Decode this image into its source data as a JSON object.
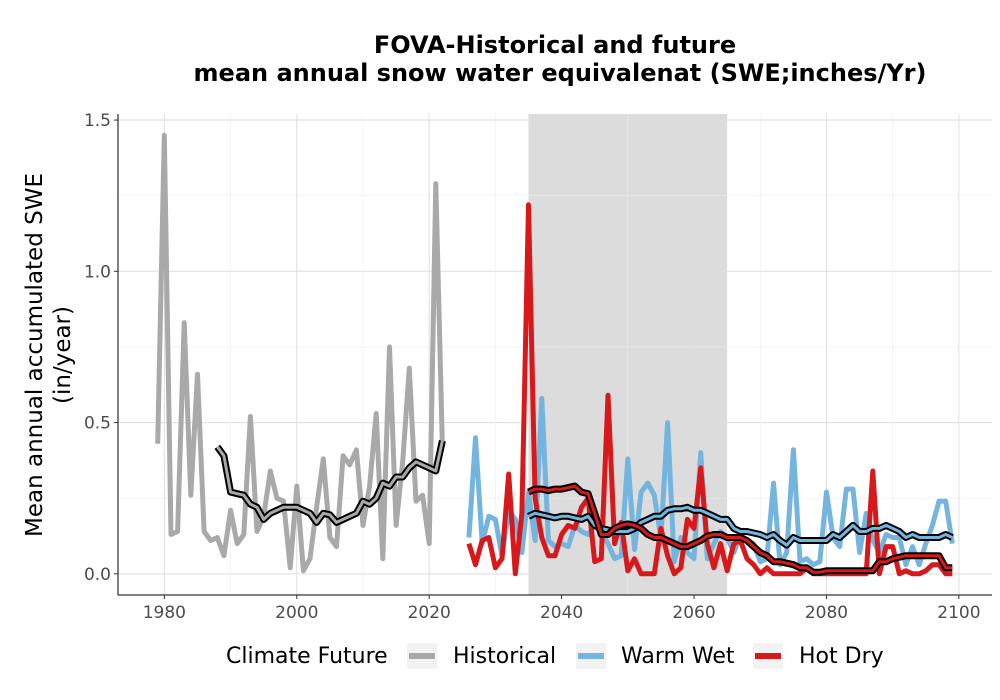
{
  "chart_data": {
    "type": "line",
    "title_line1": "FOVA-Historical and future",
    "title_line2": "mean annual snow water equivalenat (SWE;inches/Yr)",
    "ylabel_line1": "Mean annual accumulated SWE",
    "ylabel_line2": "(in/year)",
    "xlabel": "",
    "xlim": [
      1973,
      2105
    ],
    "ylim": [
      -0.07,
      1.52
    ],
    "xticks": [
      1980,
      2000,
      2020,
      2040,
      2060,
      2080,
      2100
    ],
    "yticks": [
      0.0,
      0.5,
      1.0,
      1.5
    ],
    "ytick_labels": [
      "0.0",
      "0.5",
      "1.0",
      "1.5"
    ],
    "shaded_period": [
      2035,
      2065
    ],
    "legend": {
      "title": "Climate Future",
      "position": "bottom",
      "entries": [
        {
          "label": "Historical",
          "color": "#a9a9a9"
        },
        {
          "label": "Warm Wet",
          "color": "#74b5e0"
        },
        {
          "label": "Hot Dry",
          "color": "#d7191c"
        }
      ]
    },
    "series": [
      {
        "name": "Historical",
        "color": "#a9a9a9",
        "x": [
          1979,
          1980,
          1981,
          1982,
          1983,
          1984,
          1985,
          1986,
          1987,
          1988,
          1989,
          1990,
          1991,
          1992,
          1993,
          1994,
          1995,
          1996,
          1997,
          1998,
          1999,
          2000,
          2001,
          2002,
          2003,
          2004,
          2005,
          2006,
          2007,
          2008,
          2009,
          2010,
          2011,
          2012,
          2013,
          2014,
          2015,
          2016,
          2017,
          2018,
          2019,
          2020,
          2021,
          2022
        ],
        "values": [
          0.43,
          1.45,
          0.13,
          0.14,
          0.83,
          0.26,
          0.66,
          0.14,
          0.11,
          0.12,
          0.06,
          0.21,
          0.1,
          0.13,
          0.52,
          0.14,
          0.19,
          0.34,
          0.25,
          0.24,
          0.02,
          0.29,
          0.01,
          0.05,
          0.22,
          0.38,
          0.12,
          0.09,
          0.39,
          0.36,
          0.41,
          0.16,
          0.29,
          0.53,
          0.05,
          0.75,
          0.16,
          0.37,
          0.68,
          0.24,
          0.26,
          0.1,
          1.29,
          0.42
        ]
      },
      {
        "name": "Warm Wet",
        "color": "#74b5e0",
        "x": [
          2026,
          2027,
          2028,
          2029,
          2030,
          2031,
          2032,
          2033,
          2034,
          2035,
          2036,
          2037,
          2038,
          2039,
          2040,
          2041,
          2042,
          2043,
          2044,
          2045,
          2046,
          2047,
          2048,
          2049,
          2050,
          2051,
          2052,
          2053,
          2054,
          2055,
          2056,
          2057,
          2058,
          2059,
          2060,
          2061,
          2062,
          2063,
          2064,
          2065,
          2066,
          2067,
          2068,
          2069,
          2070,
          2071,
          2072,
          2073,
          2074,
          2075,
          2076,
          2077,
          2078,
          2079,
          2080,
          2081,
          2082,
          2083,
          2084,
          2085,
          2086,
          2087,
          2088,
          2089,
          2090,
          2091,
          2092,
          2093,
          2094,
          2095,
          2096,
          2097,
          2098,
          2099
        ],
        "values": [
          0.12,
          0.45,
          0.1,
          0.19,
          0.18,
          0.06,
          0.21,
          0.18,
          0.07,
          0.27,
          0.11,
          0.58,
          0.11,
          0.09,
          0.1,
          0.09,
          0.16,
          0.14,
          0.13,
          0.16,
          0.14,
          0.1,
          0.05,
          0.06,
          0.38,
          0.08,
          0.27,
          0.3,
          0.26,
          0.12,
          0.5,
          0.04,
          0.12,
          0.07,
          0.05,
          0.4,
          0.05,
          0.1,
          0.14,
          0.12,
          0.07,
          0.13,
          0.11,
          0.1,
          0.04,
          0.05,
          0.3,
          0.03,
          0.07,
          0.41,
          0.04,
          0.05,
          0.03,
          0.04,
          0.27,
          0.12,
          0.09,
          0.28,
          0.28,
          0.07,
          0.2,
          0.11,
          0.07,
          0.13,
          0.12,
          0.12,
          0.03,
          0.09,
          0.03,
          0.1,
          0.16,
          0.24,
          0.24,
          0.1
        ]
      },
      {
        "name": "Hot Dry",
        "color": "#d7191c",
        "x": [
          2026,
          2027,
          2028,
          2029,
          2030,
          2031,
          2032,
          2033,
          2034,
          2035,
          2036,
          2037,
          2038,
          2039,
          2040,
          2041,
          2042,
          2043,
          2044,
          2045,
          2046,
          2047,
          2048,
          2049,
          2050,
          2051,
          2052,
          2053,
          2054,
          2055,
          2056,
          2057,
          2058,
          2059,
          2060,
          2061,
          2062,
          2063,
          2064,
          2065,
          2066,
          2067,
          2068,
          2069,
          2070,
          2071,
          2072,
          2073,
          2074,
          2075,
          2076,
          2077,
          2078,
          2079,
          2080,
          2081,
          2082,
          2083,
          2084,
          2085,
          2086,
          2087,
          2088,
          2089,
          2090,
          2091,
          2092,
          2093,
          2094,
          2095,
          2096,
          2097,
          2098,
          2099
        ],
        "values": [
          0.1,
          0.03,
          0.11,
          0.12,
          0.02,
          0.05,
          0.33,
          0.0,
          0.2,
          1.22,
          0.25,
          0.12,
          0.06,
          0.06,
          0.13,
          0.16,
          0.15,
          0.22,
          0.25,
          0.04,
          0.05,
          0.59,
          0.1,
          0.17,
          0.01,
          0.05,
          0.0,
          0.0,
          0.0,
          0.15,
          0.06,
          0.0,
          0.02,
          0.18,
          0.15,
          0.35,
          0.1,
          0.02,
          0.1,
          0.01,
          0.1,
          0.11,
          0.05,
          0.03,
          0.0,
          0.02,
          0.0,
          0.0,
          0.0,
          0.0,
          0.0,
          0.02,
          0.0,
          0.0,
          0.0,
          0.0,
          0.0,
          0.0,
          0.0,
          0.0,
          0.0,
          0.34,
          0.0,
          0.09,
          0.09,
          0.0,
          0.01,
          0.0,
          0.0,
          0.01,
          0.03,
          0.03,
          0.0,
          0.0
        ]
      }
    ],
    "smoothed_series": [
      {
        "x": [
          1988,
          1989,
          1990,
          1991,
          1992,
          1993,
          1994,
          1995,
          1996,
          1997,
          1998,
          1999,
          2000,
          2001,
          2002,
          2003,
          2004,
          2005,
          2006,
          2007,
          2008,
          2009,
          2010,
          2011,
          2012,
          2013,
          2014,
          2015,
          2016,
          2017,
          2018,
          2019,
          2020,
          2021,
          2022
        ],
        "values": [
          0.42,
          0.39,
          0.27,
          0.265,
          0.26,
          0.23,
          0.22,
          0.18,
          0.2,
          0.21,
          0.22,
          0.22,
          0.22,
          0.21,
          0.2,
          0.17,
          0.2,
          0.195,
          0.17,
          0.18,
          0.19,
          0.2,
          0.24,
          0.23,
          0.25,
          0.3,
          0.29,
          0.32,
          0.32,
          0.35,
          0.37,
          0.36,
          0.35,
          0.34,
          0.44
        ]
      },
      {
        "x": [
          2035,
          2036,
          2037,
          2038,
          2039,
          2040,
          2041,
          2042,
          2043,
          2044,
          2045,
          2046,
          2047,
          2048,
          2049,
          2050,
          2051,
          2052,
          2053,
          2054,
          2055,
          2056,
          2057,
          2058,
          2059,
          2060,
          2061,
          2062,
          2063,
          2064,
          2065,
          2066,
          2067,
          2068,
          2069,
          2070,
          2071,
          2072,
          2073,
          2074,
          2075,
          2076,
          2077,
          2078,
          2079,
          2080,
          2081,
          2082,
          2083,
          2084,
          2085,
          2086,
          2087,
          2088,
          2089,
          2090,
          2091,
          2092,
          2093,
          2094,
          2095,
          2096,
          2097,
          2098,
          2099
        ],
        "values": [
          0.19,
          0.2,
          0.195,
          0.19,
          0.185,
          0.19,
          0.19,
          0.185,
          0.18,
          0.19,
          0.16,
          0.15,
          0.145,
          0.14,
          0.14,
          0.14,
          0.15,
          0.17,
          0.18,
          0.19,
          0.19,
          0.21,
          0.215,
          0.215,
          0.22,
          0.21,
          0.21,
          0.2,
          0.19,
          0.18,
          0.18,
          0.15,
          0.14,
          0.14,
          0.135,
          0.13,
          0.12,
          0.13,
          0.11,
          0.095,
          0.12,
          0.11,
          0.11,
          0.11,
          0.11,
          0.11,
          0.13,
          0.12,
          0.14,
          0.16,
          0.14,
          0.14,
          0.15,
          0.15,
          0.16,
          0.15,
          0.14,
          0.12,
          0.13,
          0.12,
          0.12,
          0.12,
          0.12,
          0.13,
          0.12
        ]
      },
      {
        "x": [
          2035,
          2036,
          2037,
          2038,
          2039,
          2040,
          2041,
          2042,
          2043,
          2044,
          2045,
          2046,
          2047,
          2048,
          2049,
          2050,
          2051,
          2052,
          2053,
          2054,
          2055,
          2056,
          2057,
          2058,
          2059,
          2060,
          2061,
          2062,
          2063,
          2064,
          2065,
          2066,
          2067,
          2068,
          2069,
          2070,
          2071,
          2072,
          2073,
          2074,
          2075,
          2076,
          2077,
          2078,
          2079,
          2080,
          2081,
          2082,
          2083,
          2084,
          2085,
          2086,
          2087,
          2088,
          2089,
          2090,
          2091,
          2092,
          2093,
          2094,
          2095,
          2096,
          2097,
          2098,
          2099
        ],
        "values": [
          0.27,
          0.28,
          0.28,
          0.275,
          0.28,
          0.28,
          0.285,
          0.29,
          0.27,
          0.265,
          0.2,
          0.13,
          0.13,
          0.15,
          0.16,
          0.165,
          0.16,
          0.15,
          0.13,
          0.12,
          0.12,
          0.11,
          0.1,
          0.09,
          0.09,
          0.1,
          0.11,
          0.125,
          0.13,
          0.13,
          0.12,
          0.12,
          0.12,
          0.11,
          0.09,
          0.07,
          0.06,
          0.04,
          0.04,
          0.035,
          0.03,
          0.02,
          0.02,
          0.005,
          0.005,
          0.01,
          0.01,
          0.01,
          0.01,
          0.01,
          0.01,
          0.01,
          0.01,
          0.04,
          0.04,
          0.05,
          0.055,
          0.06,
          0.06,
          0.06,
          0.06,
          0.06,
          0.06,
          0.02,
          0.02
        ]
      }
    ]
  }
}
